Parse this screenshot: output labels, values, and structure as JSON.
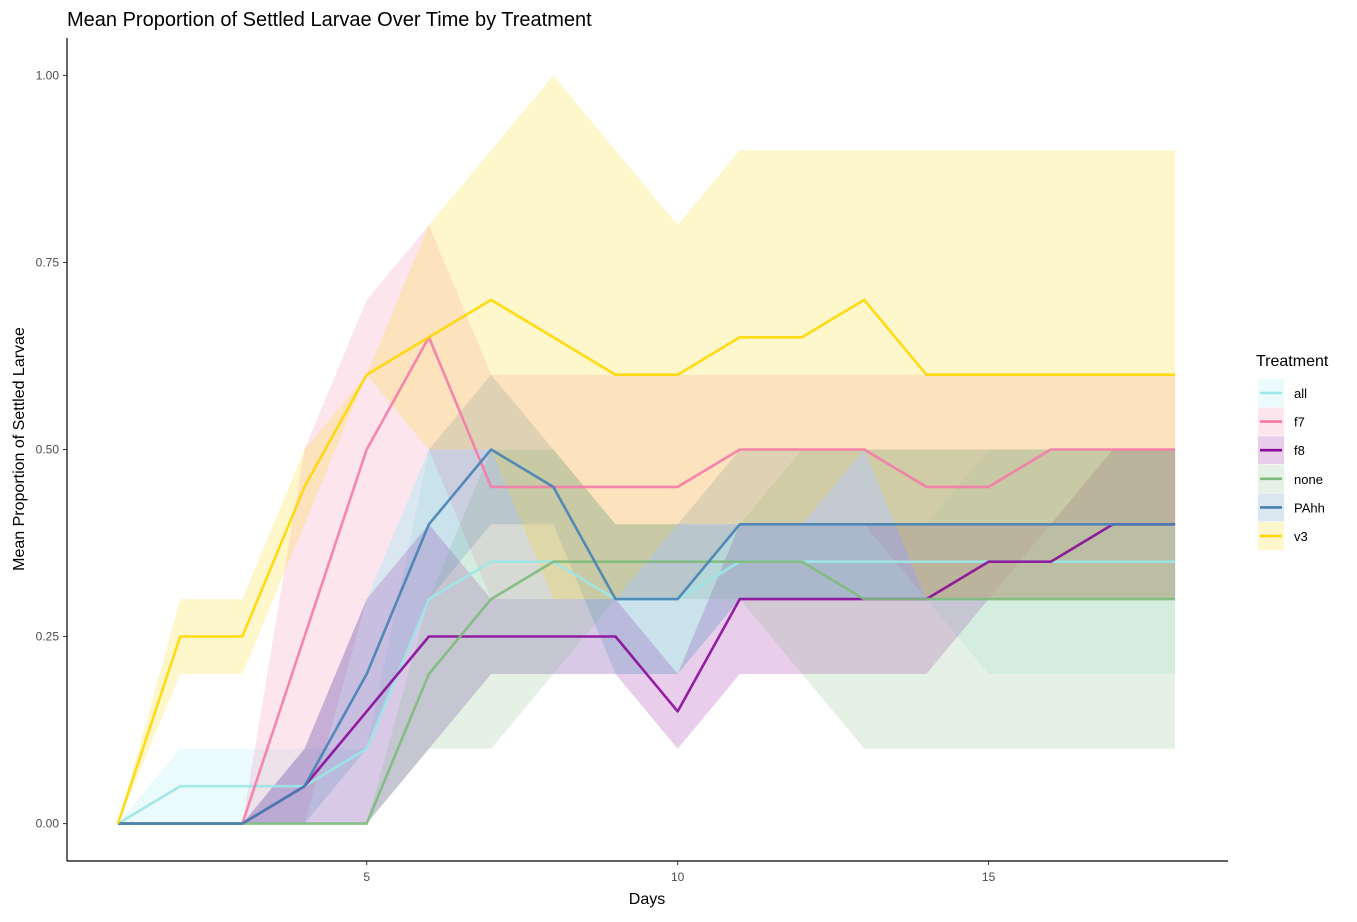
{
  "chart_data": {
    "type": "line",
    "title": "Mean Proportion of Settled Larvae Over Time by Treatment",
    "xlabel": "Days",
    "ylabel": "Mean Proportion of Settled Larvae",
    "xlim": [
      0.18,
      18.85
    ],
    "ylim": [
      -0.05,
      1.05
    ],
    "x_ticks": [
      5,
      10,
      15
    ],
    "x_tick_labels": [
      "5",
      "10",
      "15"
    ],
    "y_ticks": [
      0,
      0.25,
      0.5,
      0.75,
      1.0
    ],
    "y_tick_labels": [
      "0.00",
      "0.25",
      "0.50",
      "0.75",
      "1.00"
    ],
    "grid": false,
    "legend": {
      "title": "Treatment",
      "position": "right"
    },
    "x": [
      1,
      2,
      3,
      4,
      5,
      6,
      7,
      8,
      9,
      10,
      11,
      12,
      13,
      14,
      15,
      16,
      17,
      18
    ],
    "series": [
      {
        "name": "all",
        "color": "#9BE7E7",
        "values": [
          0,
          0.05,
          0.05,
          0.05,
          0.1,
          0.3,
          0.35,
          0.35,
          0.3,
          0.3,
          0.35,
          0.35,
          0.35,
          0.35,
          0.35,
          0.35,
          0.35,
          0.35
        ],
        "lower": [
          0,
          0,
          0,
          0,
          0,
          0.1,
          0.2,
          0.2,
          0.2,
          0.2,
          0.3,
          0.3,
          0.3,
          0.3,
          0.2,
          0.2,
          0.2,
          0.2
        ],
        "upper": [
          0,
          0.1,
          0.1,
          0.1,
          0.1,
          0.5,
          0.5,
          0.5,
          0.4,
          0.4,
          0.4,
          0.4,
          0.4,
          0.4,
          0.5,
          0.5,
          0.5,
          0.5
        ]
      },
      {
        "name": "f7",
        "color": "#F47BA8",
        "values": [
          0,
          0,
          0,
          0.25,
          0.5,
          0.65,
          0.45,
          0.45,
          0.45,
          0.45,
          0.5,
          0.5,
          0.5,
          0.45,
          0.45,
          0.5,
          0.5,
          0.5
        ],
        "lower": [
          0,
          0,
          0,
          0,
          0.3,
          0.5,
          0.3,
          0.3,
          0.3,
          0.3,
          0.4,
          0.4,
          0.4,
          0.3,
          0.3,
          0.4,
          0.4,
          0.4
        ],
        "upper": [
          0,
          0,
          0,
          0.5,
          0.7,
          0.8,
          0.6,
          0.6,
          0.6,
          0.6,
          0.6,
          0.6,
          0.6,
          0.6,
          0.6,
          0.6,
          0.6,
          0.6
        ]
      },
      {
        "name": "f8",
        "color": "#8B0A9A",
        "values": [
          0,
          0,
          0,
          0.05,
          0.15,
          0.25,
          0.25,
          0.25,
          0.25,
          0.15,
          0.3,
          0.3,
          0.3,
          0.3,
          0.35,
          0.35,
          0.4,
          0.4
        ],
        "lower": [
          0,
          0,
          0,
          0,
          0,
          0.1,
          0.2,
          0.2,
          0.2,
          0.1,
          0.2,
          0.2,
          0.2,
          0.2,
          0.3,
          0.3,
          0.3,
          0.3
        ],
        "upper": [
          0,
          0,
          0,
          0.1,
          0.3,
          0.4,
          0.3,
          0.3,
          0.3,
          0.2,
          0.4,
          0.4,
          0.4,
          0.4,
          0.4,
          0.4,
          0.5,
          0.5
        ]
      },
      {
        "name": "none",
        "color": "#7DBB7D",
        "values": [
          0,
          0,
          0,
          0,
          0,
          0.2,
          0.3,
          0.35,
          0.35,
          0.35,
          0.35,
          0.35,
          0.3,
          0.3,
          0.3,
          0.3,
          0.3,
          0.3
        ],
        "lower": [
          0,
          0,
          0,
          0,
          0,
          0.1,
          0.1,
          0.2,
          0.3,
          0.3,
          0.3,
          0.2,
          0.1,
          0.1,
          0.1,
          0.1,
          0.1,
          0.1
        ],
        "upper": [
          0,
          0,
          0,
          0,
          0,
          0.3,
          0.5,
          0.5,
          0.4,
          0.4,
          0.4,
          0.5,
          0.5,
          0.5,
          0.5,
          0.5,
          0.5,
          0.5
        ]
      },
      {
        "name": "PAhh",
        "color": "#4682B4",
        "values": [
          0,
          0,
          0,
          0.05,
          0.2,
          0.4,
          0.5,
          0.45,
          0.3,
          0.3,
          0.4,
          0.4,
          0.4,
          0.4,
          0.4,
          0.4,
          0.4,
          0.4
        ],
        "lower": [
          0,
          0,
          0,
          0,
          0.1,
          0.3,
          0.4,
          0.4,
          0.2,
          0.2,
          0.3,
          0.3,
          0.3,
          0.3,
          0.3,
          0.3,
          0.3,
          0.3
        ],
        "upper": [
          0,
          0,
          0,
          0.1,
          0.3,
          0.5,
          0.6,
          0.5,
          0.4,
          0.4,
          0.5,
          0.5,
          0.5,
          0.5,
          0.5,
          0.5,
          0.5,
          0.5
        ]
      },
      {
        "name": "v3",
        "color": "#FFD700",
        "values": [
          0,
          0.25,
          0.25,
          0.45,
          0.6,
          0.65,
          0.7,
          0.65,
          0.6,
          0.6,
          0.65,
          0.65,
          0.7,
          0.6,
          0.6,
          0.6,
          0.6,
          0.6
        ],
        "lower": [
          0,
          0.2,
          0.2,
          0.4,
          0.6,
          0.5,
          0.5,
          0.3,
          0.3,
          0.4,
          0.4,
          0.4,
          0.5,
          0.3,
          0.3,
          0.3,
          0.3,
          0.3
        ],
        "upper": [
          0,
          0.3,
          0.3,
          0.5,
          0.6,
          0.8,
          0.9,
          1.0,
          0.9,
          0.8,
          0.9,
          0.9,
          0.9,
          0.9,
          0.9,
          0.9,
          0.9,
          0.9
        ]
      }
    ]
  }
}
